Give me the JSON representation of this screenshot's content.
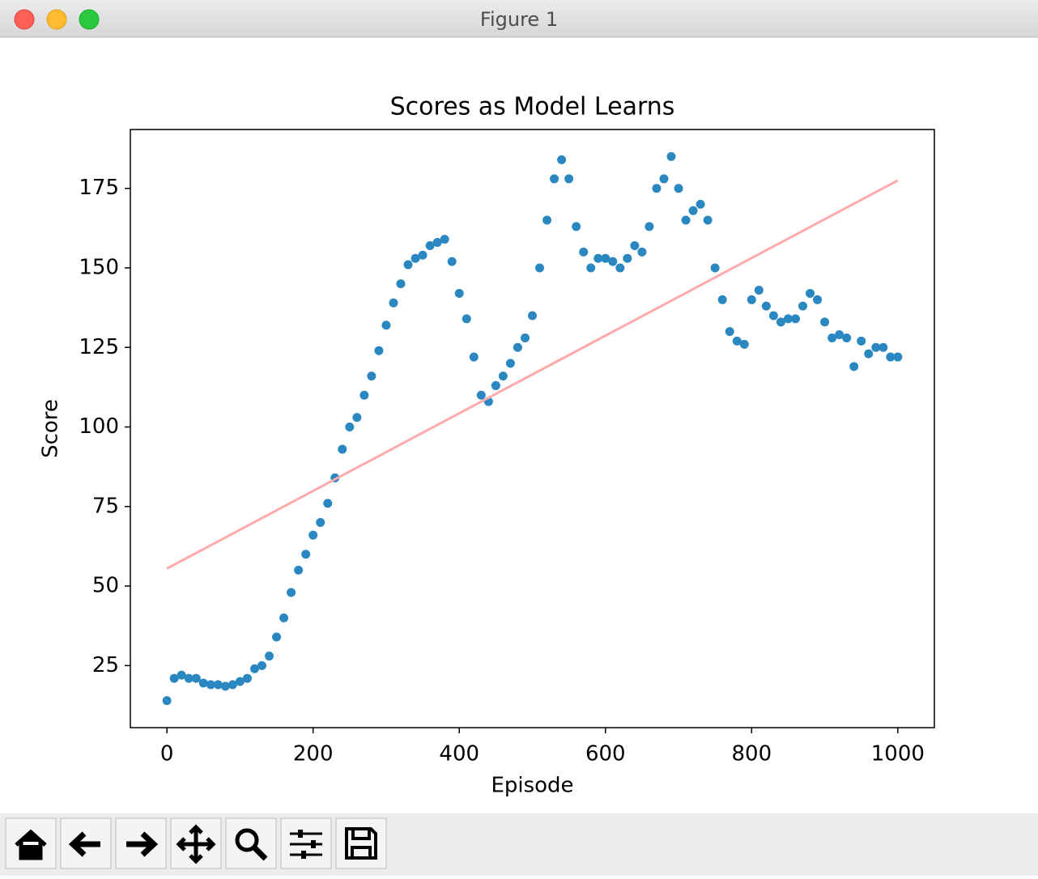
{
  "window": {
    "title": "Figure 1"
  },
  "chart_data": {
    "type": "scatter",
    "title": "Scores as Model Learns",
    "x_label": "Episode",
    "y_label": "Score",
    "xlim": [
      -50,
      1050
    ],
    "ylim": [
      5.5,
      193.5
    ],
    "xticks": [
      0,
      200,
      400,
      600,
      800,
      1000
    ],
    "yticks": [
      25,
      50,
      75,
      100,
      125,
      150,
      175
    ],
    "grid": false,
    "series": [
      {
        "style": "markers",
        "color": "#2b87c0",
        "x": [
          0,
          10,
          20,
          30,
          40,
          50,
          60,
          70,
          80,
          90,
          100,
          110,
          120,
          130,
          140,
          150,
          160,
          170,
          180,
          190,
          200,
          210,
          220,
          230,
          240,
          250,
          260,
          270,
          280,
          290,
          300,
          310,
          320,
          330,
          340,
          350,
          360,
          370,
          380,
          390,
          400,
          410,
          420,
          430,
          440,
          450,
          460,
          470,
          480,
          490,
          500,
          510,
          520,
          530,
          540,
          550,
          560,
          570,
          580,
          590,
          600,
          610,
          620,
          630,
          640,
          650,
          660,
          670,
          680,
          690,
          700,
          710,
          720,
          730,
          740,
          750,
          760,
          770,
          780,
          790,
          800,
          810,
          820,
          830,
          840,
          850,
          860,
          870,
          880,
          890,
          900,
          910,
          920,
          930,
          940,
          950,
          960,
          970,
          980,
          990,
          1000
        ],
        "values": [
          14,
          21,
          22,
          21,
          21,
          19.5,
          19,
          19,
          18.5,
          19,
          20,
          21,
          24,
          25,
          28,
          34,
          40,
          48,
          55,
          60,
          66,
          70,
          76,
          84,
          93,
          100,
          103,
          110,
          116,
          124,
          132,
          139,
          145,
          151,
          153,
          154,
          157,
          158,
          159,
          152,
          142,
          134,
          122,
          110,
          108,
          113,
          116,
          120,
          125,
          128,
          135,
          150,
          165,
          178,
          184,
          178,
          163,
          155,
          150,
          153,
          153,
          152,
          150,
          153,
          157,
          155,
          163,
          175,
          178,
          185,
          175,
          165,
          168,
          170,
          165,
          150,
          140,
          130,
          127,
          126,
          140,
          143,
          138,
          135,
          133,
          134,
          134,
          138,
          142,
          140,
          133,
          128,
          129,
          128,
          119,
          127,
          123,
          125,
          125,
          122,
          122
        ]
      },
      {
        "style": "line",
        "color": "#ffaaaa",
        "x": [
          0,
          1000
        ],
        "values": [
          55.5,
          177.5
        ]
      }
    ]
  }
}
